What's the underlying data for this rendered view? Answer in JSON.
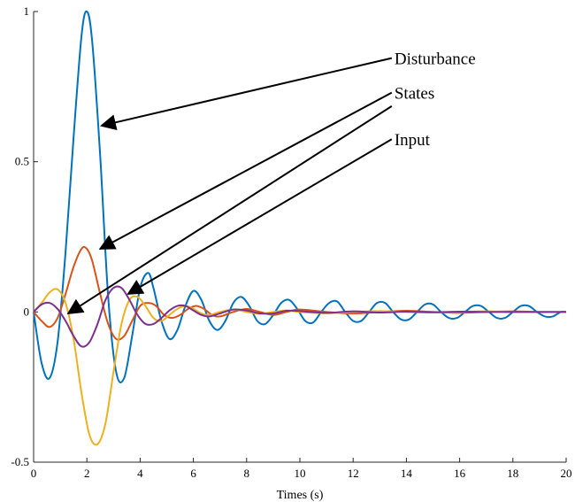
{
  "chart_data": {
    "type": "line",
    "title": "",
    "xlabel": "Times (s)",
    "ylabel": "",
    "xlim": [
      0,
      20
    ],
    "ylim": [
      -0.5,
      1
    ],
    "grid": false,
    "legend": "none",
    "xticks": [
      "0",
      "2",
      "4",
      "6",
      "8",
      "10",
      "12",
      "14",
      "16",
      "18",
      "20"
    ],
    "yticks": [
      "-0.5",
      "0",
      "0.5",
      "1"
    ],
    "series": [
      {
        "color": "#0072BD",
        "x": [
          0,
          0.3,
          0.6,
          0.9,
          1.2,
          1.5,
          1.8,
          2.0,
          2.2,
          2.5,
          2.8,
          3.1,
          3.4,
          3.7,
          4.0,
          4.3,
          4.5,
          4.8,
          5.1,
          5.4,
          5.7,
          6.0,
          6.3,
          6.6,
          6.9,
          7.2,
          7.5,
          7.8,
          8.1,
          8.4,
          8.7,
          9.0,
          9.3,
          9.6,
          9.9,
          10.2,
          10.5,
          10.8,
          11.1,
          11.4,
          11.7,
          12.0,
          12.3,
          12.6,
          12.9,
          13.2,
          13.5,
          13.8,
          14.1,
          14.4,
          14.7,
          15.0,
          15.3,
          15.6,
          15.9,
          16.2,
          16.5,
          16.8,
          17.1,
          17.4,
          17.7,
          18.0,
          18.3,
          18.6,
          18.9,
          19.2,
          19.5,
          19.8,
          20.0
        ],
        "y": [
          0,
          -0.17,
          -0.22,
          -0.1,
          0.2,
          0.58,
          0.92,
          1.0,
          0.9,
          0.52,
          0.05,
          -0.2,
          -0.22,
          -0.08,
          0.08,
          0.13,
          0.08,
          -0.03,
          -0.09,
          -0.06,
          0.02,
          0.07,
          0.04,
          -0.03,
          -0.06,
          -0.03,
          0.03,
          0.05,
          0.02,
          -0.03,
          -0.04,
          -0.01,
          0.03,
          0.04,
          0.01,
          -0.03,
          -0.035,
          0.0,
          0.03,
          0.035,
          0.0,
          -0.03,
          -0.03,
          0.0,
          0.03,
          0.03,
          0.0,
          -0.025,
          -0.025,
          0.0,
          0.025,
          0.025,
          0.0,
          -0.02,
          -0.02,
          0.0,
          0.02,
          0.02,
          0.0,
          -0.02,
          -0.02,
          0.0,
          0.02,
          0.02,
          0.0,
          -0.015,
          -0.015,
          0.0,
          0.0
        ]
      },
      {
        "color": "#D95319",
        "x": [
          0,
          0.3,
          0.6,
          0.9,
          1.2,
          1.5,
          1.8,
          2.0,
          2.2,
          2.5,
          2.8,
          3.1,
          3.4,
          3.7,
          4.0,
          4.3,
          4.6,
          4.9,
          5.2,
          5.5,
          5.8,
          6.1,
          6.4,
          6.7,
          7.0,
          7.5,
          8.0,
          8.5,
          9.0,
          9.5,
          10.0,
          11.0,
          12.0,
          13.0,
          14.0,
          15.0,
          16.0,
          17.0,
          18.0,
          19.0,
          20.0
        ],
        "y": [
          0,
          -0.03,
          -0.05,
          -0.02,
          0.06,
          0.15,
          0.21,
          0.21,
          0.17,
          0.06,
          -0.04,
          -0.09,
          -0.08,
          -0.03,
          0.02,
          0.03,
          0.02,
          -0.01,
          -0.02,
          -0.01,
          0.01,
          0.02,
          0.01,
          -0.01,
          -0.015,
          0.0,
          0.01,
          0.0,
          -0.01,
          0.0,
          0.008,
          0.0,
          -0.005,
          0.0,
          0.004,
          0.0,
          -0.003,
          0.0,
          0.002,
          0.0,
          0.0
        ]
      },
      {
        "color": "#EDB120",
        "x": [
          0,
          0.3,
          0.6,
          0.9,
          1.2,
          1.5,
          1.8,
          2.1,
          2.4,
          2.7,
          3.0,
          3.3,
          3.6,
          3.9,
          4.2,
          4.5,
          4.8,
          5.1,
          5.4,
          5.7,
          6.0,
          6.3,
          6.6,
          7.0,
          7.5,
          8.0,
          8.5,
          9.0,
          9.5,
          10.0,
          11.0,
          12.0,
          13.0,
          14.0,
          15.0,
          16.0,
          17.0,
          18.0,
          19.0,
          20.0
        ],
        "y": [
          0,
          0.03,
          0.065,
          0.075,
          0.03,
          -0.09,
          -0.27,
          -0.41,
          -0.44,
          -0.37,
          -0.2,
          -0.04,
          0.04,
          0.05,
          0.02,
          -0.02,
          -0.03,
          -0.01,
          0.01,
          0.02,
          0.01,
          -0.005,
          -0.01,
          0.0,
          0.008,
          0.0,
          -0.006,
          0.0,
          0.005,
          0.0,
          -0.004,
          0.0,
          0.003,
          0.0,
          -0.002,
          0.0,
          0.002,
          0.0,
          0.0,
          0.0
        ]
      },
      {
        "color": "#7E2F8E",
        "x": [
          0,
          0.3,
          0.6,
          0.9,
          1.2,
          1.5,
          1.8,
          2.1,
          2.4,
          2.7,
          3.0,
          3.3,
          3.6,
          3.9,
          4.2,
          4.5,
          4.8,
          5.1,
          5.4,
          5.7,
          6.0,
          6.3,
          6.6,
          7.0,
          7.5,
          8.0,
          8.5,
          9.0,
          9.5,
          10.0,
          11.0,
          12.0,
          13.0,
          14.0,
          15.0,
          16.0,
          17.0,
          18.0,
          19.0,
          20.0
        ],
        "y": [
          0,
          0.025,
          0.03,
          0.01,
          -0.03,
          -0.08,
          -0.115,
          -0.1,
          -0.04,
          0.04,
          0.08,
          0.08,
          0.04,
          -0.01,
          -0.04,
          -0.04,
          -0.02,
          0.005,
          0.02,
          0.02,
          0.005,
          -0.01,
          -0.015,
          -0.005,
          0.008,
          0.005,
          -0.005,
          -0.005,
          0.004,
          0.003,
          -0.003,
          0.002,
          -0.002,
          0.001,
          -0.001,
          0.001,
          0.0,
          0.0,
          0.0,
          0.0
        ]
      }
    ],
    "annotations": [
      {
        "text": "Disturbance",
        "text_at": [
          13.55,
          0.845
        ],
        "arrows": [
          {
            "from": [
              13.45,
              0.845
            ],
            "to": [
              2.55,
              0.62
            ]
          }
        ]
      },
      {
        "text": "States",
        "text_at": [
          13.55,
          0.73
        ],
        "arrows": [
          {
            "from": [
              13.45,
              0.73
            ],
            "to": [
              2.5,
              0.21
            ]
          },
          {
            "from": [
              13.45,
              0.685
            ],
            "to": [
              1.3,
              -0.005
            ]
          }
        ]
      },
      {
        "text": "Input",
        "text_at": [
          13.55,
          0.575
        ],
        "arrows": [
          {
            "from": [
              13.45,
              0.575
            ],
            "to": [
              3.55,
              0.06
            ]
          }
        ]
      }
    ]
  }
}
